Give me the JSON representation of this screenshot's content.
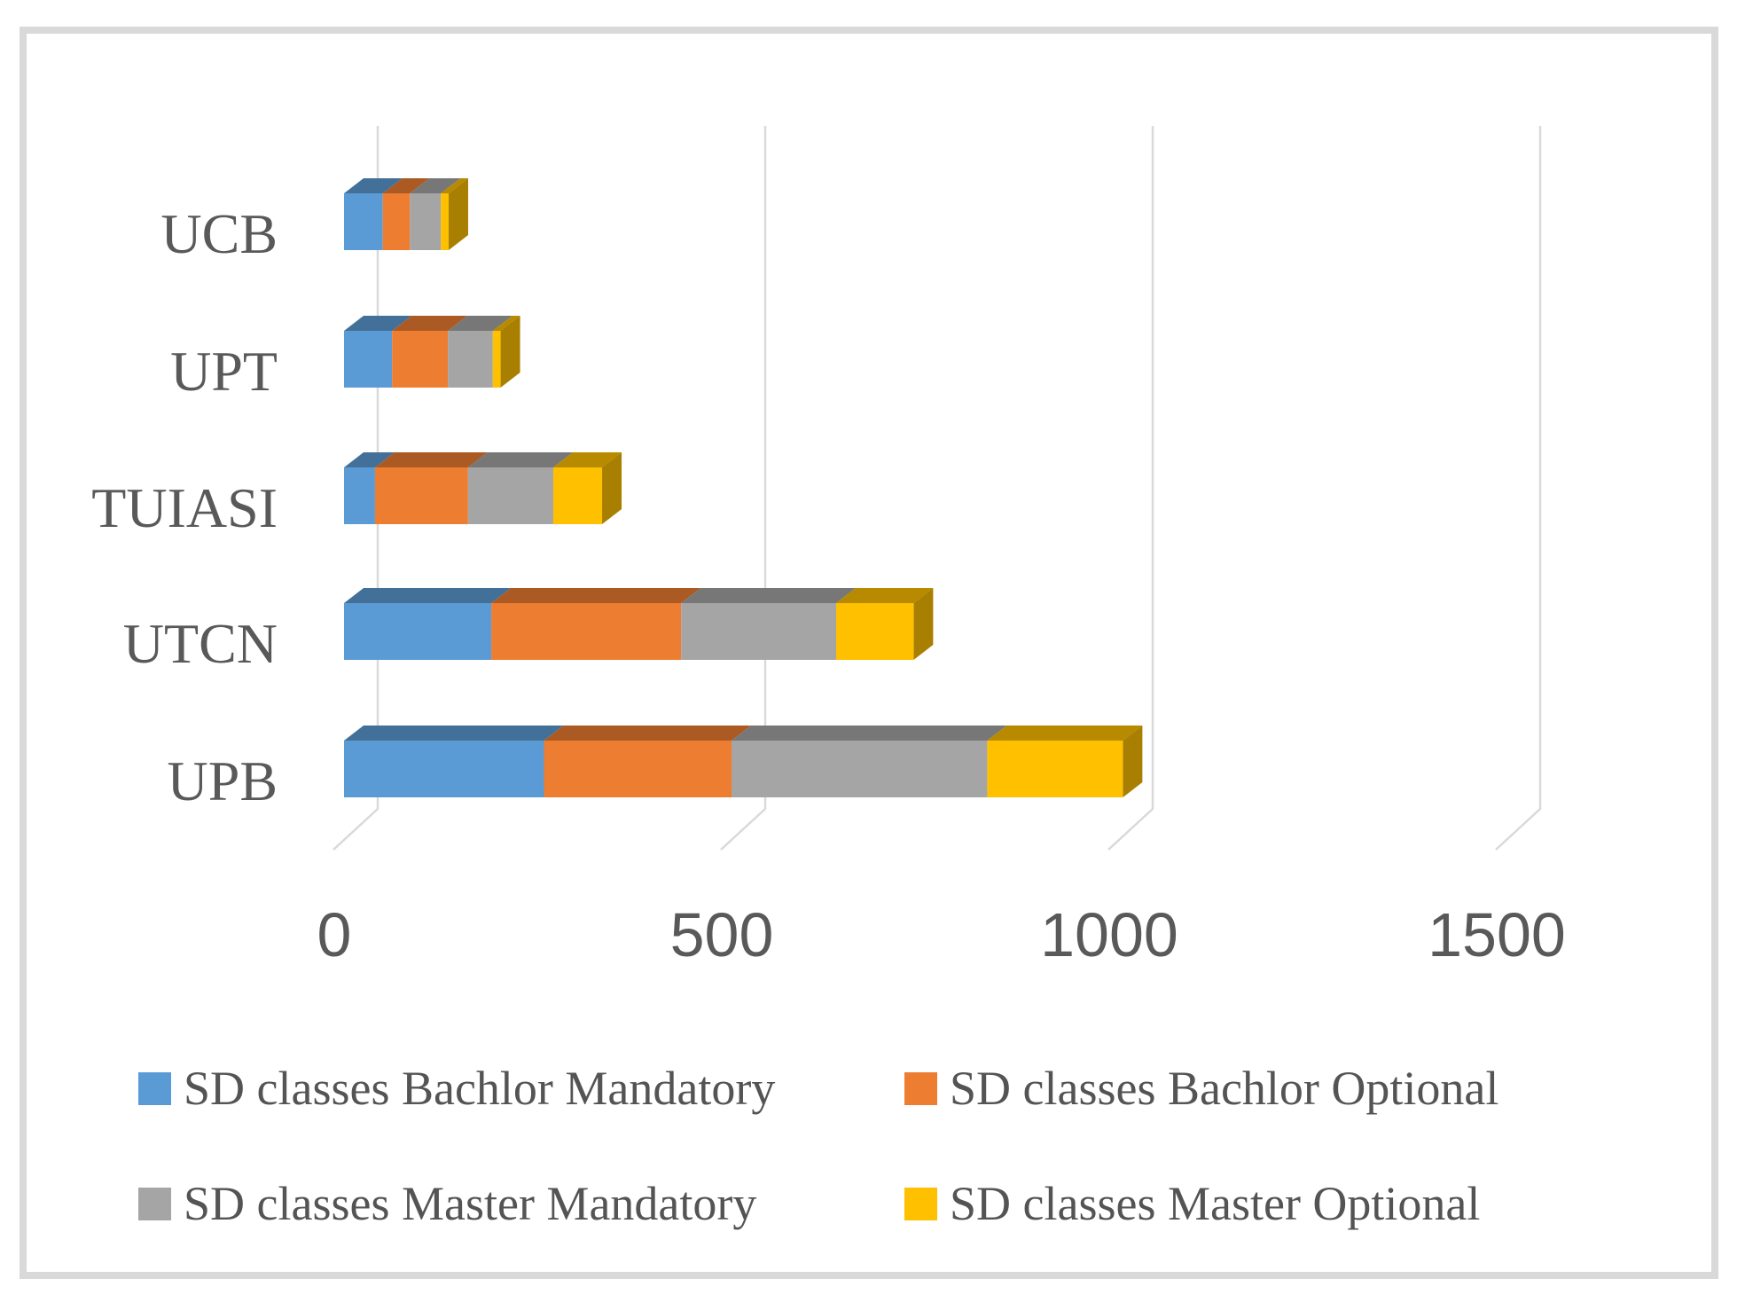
{
  "chart_data": {
    "type": "bar",
    "orientation": "horizontal",
    "stacked": true,
    "style": "3d",
    "title": "",
    "xlabel": "",
    "ylabel": "",
    "category_order": "top-to-bottom",
    "categories": [
      "UCB",
      "UPT",
      "TUIASI",
      "UTCN",
      "UPB"
    ],
    "series": [
      {
        "name": "SD classes Bachlor Mandatory",
        "color": "#5B9BD5",
        "values": [
          50,
          62,
          40,
          190,
          258
        ]
      },
      {
        "name": "SD classes Bachlor Optional",
        "color": "#ED7D31",
        "values": [
          35,
          72,
          120,
          245,
          242
        ]
      },
      {
        "name": "SD classes Master Mandatory",
        "color": "#A5A5A5",
        "values": [
          40,
          58,
          110,
          200,
          330
        ]
      },
      {
        "name": "SD classes Master Optional",
        "color": "#FFC000",
        "values": [
          10,
          10,
          63,
          100,
          175
        ]
      }
    ],
    "totals_by_category": [
      135,
      202,
      333,
      735,
      1005
    ],
    "xlim": [
      0,
      1500
    ],
    "xticks": [
      0,
      500,
      1000,
      1500
    ],
    "xtick_labels": [
      "0",
      "500",
      "1000",
      "1500"
    ],
    "grid": true,
    "gridline_color": "#D9D9D9",
    "text_color": "#595959",
    "legend_position": "bottom",
    "legend_rows": 2
  },
  "frame": {
    "border_color": "#D9D9D9",
    "background": "#FFFFFF"
  }
}
